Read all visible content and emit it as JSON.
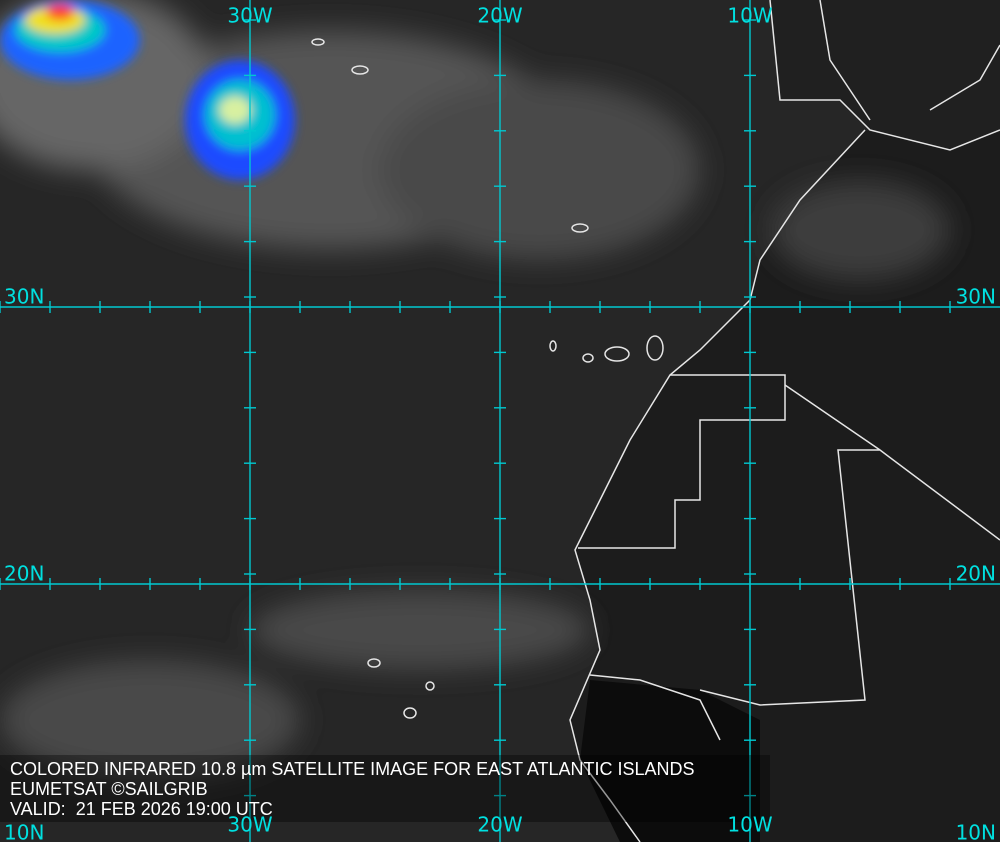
{
  "grid_labels": {
    "top": [
      "30W",
      "20W",
      "10W"
    ],
    "bottom": [
      "30W",
      "20W",
      "10W"
    ],
    "left": [
      "30N",
      "20N",
      "10N"
    ],
    "right": [
      "30N",
      "20N",
      "10N"
    ]
  },
  "caption": {
    "line1": "COLORED INFRARED 10.8 µm SATELLITE IMAGE FOR EAST ATLANTIC ISLANDS",
    "line2": "EUMETSAT ©SAILGRIB",
    "line3": "VALID:  21 FEB 2026 19:00 UTC"
  }
}
